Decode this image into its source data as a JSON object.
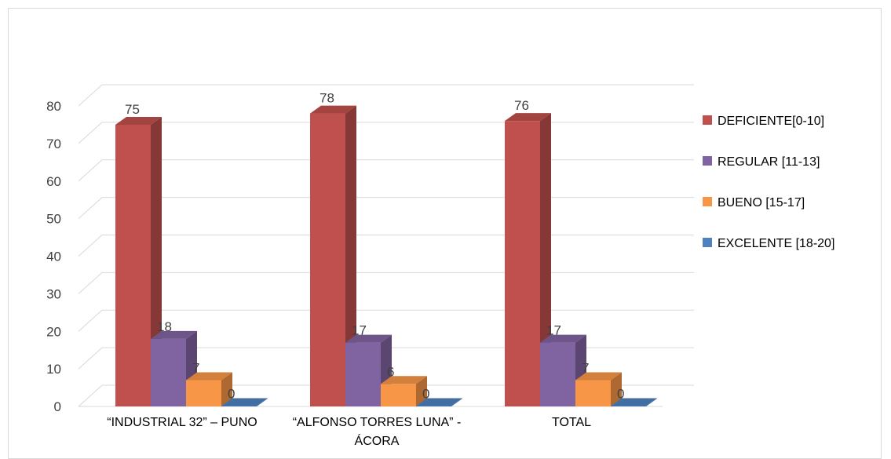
{
  "chart_data": {
    "type": "bar",
    "title": "",
    "xlabel": "",
    "ylabel": "",
    "ylim": [
      0,
      80
    ],
    "yticks": [
      0,
      10,
      20,
      30,
      40,
      50,
      60,
      70,
      80
    ],
    "grid": true,
    "legend_position": "right",
    "categories": [
      "“INDUSTRIAL  32” – PUNO",
      "“ALFONSO  TORRES LUNA” - ÁCORA",
      "TOTAL"
    ],
    "category_lines": [
      [
        "“INDUSTRIAL  32” – PUNO"
      ],
      [
        "“ALFONSO  TORRES LUNA” -",
        "ÁCORA"
      ],
      [
        "TOTAL"
      ]
    ],
    "series": [
      {
        "name": "DEFICIENTE[0-10]",
        "values": [
          75,
          78,
          76
        ],
        "color": "#c0504d"
      },
      {
        "name": "REGULAR [11-13]",
        "values": [
          18,
          17,
          17
        ],
        "color": "#8064a2"
      },
      {
        "name": "BUENO [15-17]",
        "values": [
          7,
          6,
          7
        ],
        "color": "#f79646"
      },
      {
        "name": "EXCELENTE  [18-20]",
        "values": [
          0,
          0,
          0
        ],
        "color": "#4f81bd"
      }
    ]
  }
}
